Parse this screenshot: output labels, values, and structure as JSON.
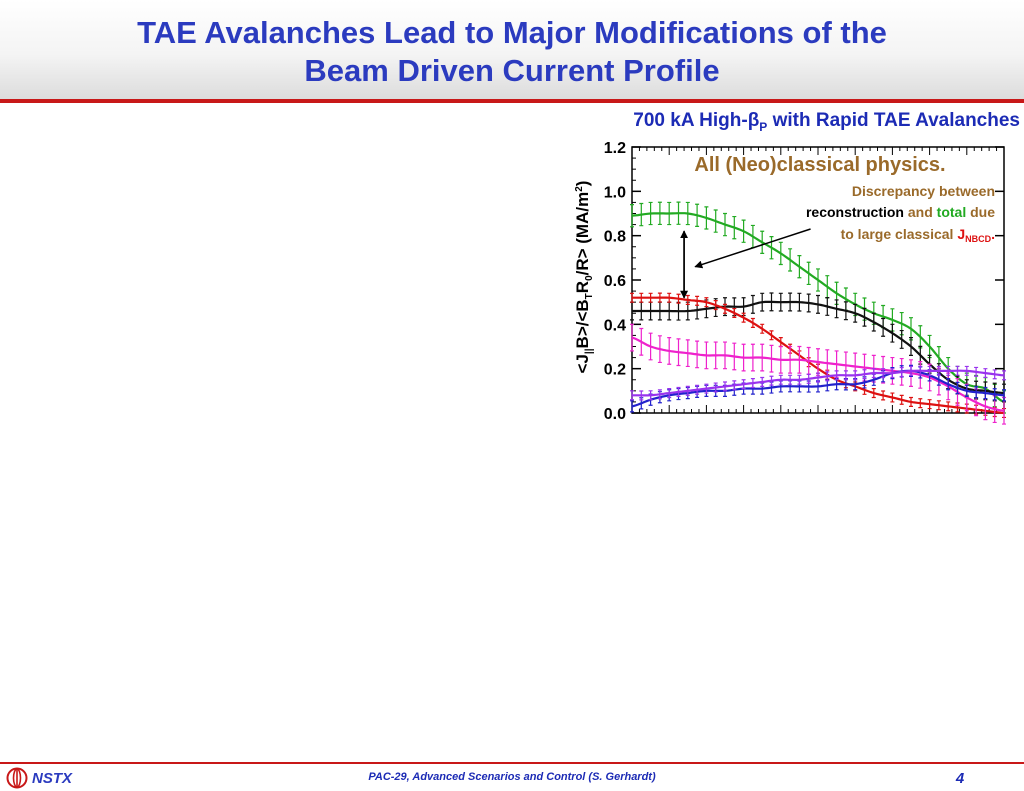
{
  "slide": {
    "title_line1": "TAE Avalanches Lead to Major Modifications of the",
    "title_line2": "Beam Driven Current Profile",
    "subtitle_prefix": "700 kA High-",
    "subtitle_beta": "β",
    "subtitle_sub": "P",
    "subtitle_suffix": " with Rapid TAE Avalanches"
  },
  "footer": {
    "logo_text": "NSTX",
    "center_text": "PAC-29, Advanced Scenarios and Control (S. Gerhardt)",
    "page_number": "4"
  },
  "colors": {
    "title": "#2b3bbf",
    "accent_red": "#c81818",
    "annotation_brown": "#9a6a2a"
  },
  "chart_data": {
    "type": "line",
    "ylabel_parts": [
      "<J",
      "||",
      "B>/<B",
      "T",
      "R",
      "0",
      "/R> (MA/m",
      "2",
      ")"
    ],
    "ylim": [
      0,
      1.2
    ],
    "xlim": [
      0,
      1
    ],
    "y_ticks": [
      "0.0",
      "0.2",
      "0.4",
      "0.6",
      "0.8",
      "1.0",
      "1.2"
    ],
    "annotation_heading": "All (Neo)classical physics.",
    "annotation_line1": "Discrepancy between",
    "annotation_line2_a": "reconstruction",
    "annotation_line2_b": " and ",
    "annotation_line2_c": "total",
    "annotation_line2_d": " due",
    "annotation_line3_a": "to large classical ",
    "annotation_line3_b": "J",
    "annotation_line3_c": "NBCD",
    "annotation_line3_d": ".",
    "series": [
      {
        "color": "#22aa22",
        "errorbars": true,
        "err": 0.05,
        "x": [
          0,
          0.05,
          0.1,
          0.15,
          0.2,
          0.25,
          0.3,
          0.35,
          0.4,
          0.45,
          0.5,
          0.55,
          0.6,
          0.65,
          0.7,
          0.75,
          0.8,
          0.85,
          0.9,
          0.95,
          1.0
        ],
        "y": [
          0.89,
          0.9,
          0.9,
          0.9,
          0.88,
          0.85,
          0.82,
          0.77,
          0.72,
          0.66,
          0.6,
          0.54,
          0.49,
          0.45,
          0.42,
          0.38,
          0.3,
          0.2,
          0.13,
          0.11,
          0.05
        ]
      },
      {
        "color": "#111111",
        "errorbars": true,
        "err": 0.04,
        "x": [
          0,
          0.05,
          0.1,
          0.15,
          0.2,
          0.25,
          0.3,
          0.35,
          0.4,
          0.45,
          0.5,
          0.55,
          0.6,
          0.65,
          0.7,
          0.75,
          0.8,
          0.85,
          0.9,
          0.95,
          1.0
        ],
        "y": [
          0.46,
          0.46,
          0.46,
          0.46,
          0.47,
          0.48,
          0.48,
          0.5,
          0.5,
          0.5,
          0.49,
          0.47,
          0.45,
          0.41,
          0.36,
          0.3,
          0.22,
          0.15,
          0.11,
          0.1,
          0.09
        ]
      },
      {
        "color": "#dd1111",
        "errorbars": true,
        "err": 0.02,
        "x": [
          0,
          0.05,
          0.1,
          0.15,
          0.2,
          0.25,
          0.3,
          0.35,
          0.4,
          0.45,
          0.5,
          0.55,
          0.6,
          0.65,
          0.7,
          0.75,
          0.8,
          0.85,
          0.9,
          0.95,
          1.0
        ],
        "y": [
          0.52,
          0.52,
          0.52,
          0.51,
          0.5,
          0.47,
          0.43,
          0.38,
          0.32,
          0.26,
          0.2,
          0.15,
          0.12,
          0.09,
          0.07,
          0.05,
          0.04,
          0.03,
          0.02,
          0.01,
          0.0
        ]
      },
      {
        "color": "#ee22cc",
        "errorbars": true,
        "err": 0.06,
        "x": [
          0,
          0.05,
          0.1,
          0.15,
          0.2,
          0.25,
          0.3,
          0.35,
          0.4,
          0.45,
          0.5,
          0.55,
          0.6,
          0.65,
          0.7,
          0.75,
          0.8,
          0.85,
          0.9,
          0.95,
          1.0
        ],
        "y": [
          0.34,
          0.3,
          0.28,
          0.27,
          0.26,
          0.26,
          0.25,
          0.25,
          0.24,
          0.24,
          0.23,
          0.22,
          0.21,
          0.2,
          0.19,
          0.18,
          0.16,
          0.12,
          0.07,
          0.03,
          0.01
        ]
      },
      {
        "color": "#2222cc",
        "errorbars": true,
        "err": 0.025,
        "x": [
          0,
          0.05,
          0.1,
          0.15,
          0.2,
          0.25,
          0.3,
          0.35,
          0.4,
          0.45,
          0.5,
          0.55,
          0.6,
          0.65,
          0.7,
          0.75,
          0.8,
          0.85,
          0.9,
          0.95,
          1.0
        ],
        "y": [
          0.03,
          0.06,
          0.08,
          0.09,
          0.1,
          0.1,
          0.11,
          0.11,
          0.12,
          0.12,
          0.12,
          0.13,
          0.13,
          0.15,
          0.18,
          0.19,
          0.17,
          0.13,
          0.1,
          0.09,
          0.08
        ]
      },
      {
        "color": "#9933ee",
        "errorbars": true,
        "err": 0.02,
        "x": [
          0,
          0.05,
          0.1,
          0.15,
          0.2,
          0.25,
          0.3,
          0.35,
          0.4,
          0.45,
          0.5,
          0.55,
          0.6,
          0.65,
          0.7,
          0.75,
          0.8,
          0.85,
          0.9,
          0.95,
          1.0
        ],
        "y": [
          0.08,
          0.08,
          0.09,
          0.1,
          0.11,
          0.12,
          0.13,
          0.14,
          0.15,
          0.15,
          0.16,
          0.17,
          0.17,
          0.18,
          0.18,
          0.19,
          0.19,
          0.19,
          0.19,
          0.18,
          0.17
        ]
      }
    ],
    "arrow_vertical": {
      "x": 0.14,
      "y_from": 0.82,
      "y_to": 0.52
    },
    "arrow_diagonal": {
      "x_from": 0.48,
      "y_from": 0.83,
      "x_to": 0.17,
      "y_to": 0.66
    }
  }
}
